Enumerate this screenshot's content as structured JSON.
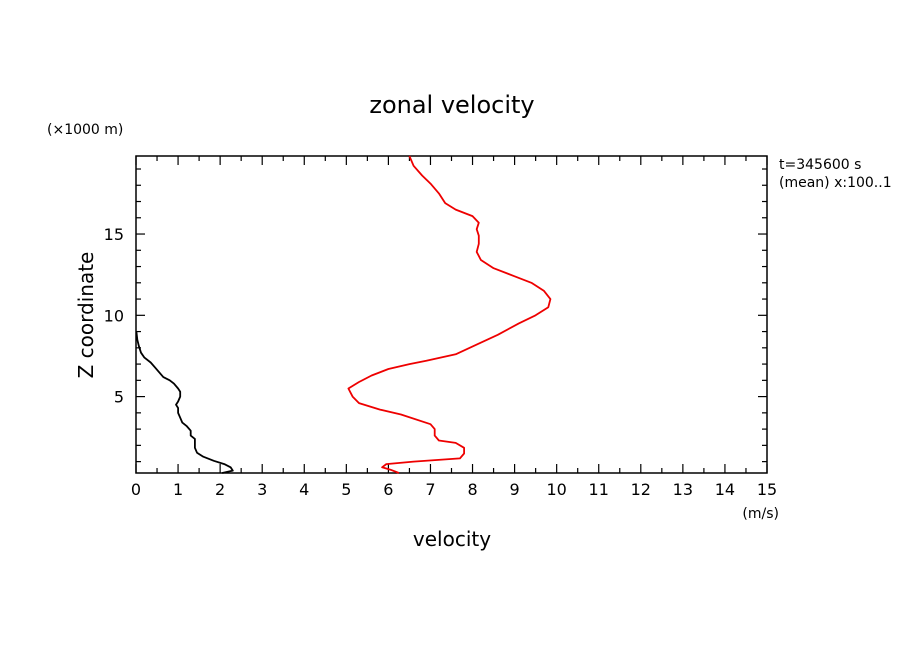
{
  "chart_data": {
    "type": "line",
    "title": "zonal velocity",
    "xlabel": "velocity",
    "ylabel": "Z coordinate",
    "x_unit": "(m/s)",
    "y_unit": "(×1000 m)",
    "annotations": [
      "t=345600 s",
      "(mean) x:100..1"
    ],
    "xlim": [
      0,
      15
    ],
    "ylim": [
      0.3,
      19.8
    ],
    "xticks": [
      0,
      1,
      2,
      3,
      4,
      5,
      6,
      7,
      8,
      9,
      10,
      11,
      12,
      13,
      14,
      15
    ],
    "yticks": [
      5,
      10,
      15
    ],
    "grid": false,
    "colors": {
      "series_black": "#000000",
      "series_red": "#ee0000"
    },
    "series": [
      {
        "color": "#000000",
        "points": [
          [
            2.05,
            0.3
          ],
          [
            2.3,
            0.45
          ],
          [
            2.25,
            0.65
          ],
          [
            2.1,
            0.85
          ],
          [
            1.85,
            1.05
          ],
          [
            1.6,
            1.3
          ],
          [
            1.45,
            1.55
          ],
          [
            1.4,
            1.85
          ],
          [
            1.4,
            2.1
          ],
          [
            1.4,
            2.4
          ],
          [
            1.3,
            2.6
          ],
          [
            1.3,
            2.9
          ],
          [
            1.2,
            3.2
          ],
          [
            1.1,
            3.4
          ],
          [
            1.05,
            3.7
          ],
          [
            1.0,
            4.0
          ],
          [
            1.0,
            4.3
          ],
          [
            0.95,
            4.5
          ],
          [
            1.0,
            4.7
          ],
          [
            1.05,
            5.0
          ],
          [
            1.05,
            5.3
          ],
          [
            1.0,
            5.5
          ],
          [
            0.9,
            5.8
          ],
          [
            0.8,
            6.0
          ],
          [
            0.65,
            6.2
          ],
          [
            0.55,
            6.5
          ],
          [
            0.45,
            6.8
          ],
          [
            0.35,
            7.1
          ],
          [
            0.2,
            7.4
          ],
          [
            0.12,
            7.7
          ],
          [
            0.07,
            8.1
          ],
          [
            0.03,
            8.5
          ],
          [
            0.01,
            9.0
          ]
        ]
      },
      {
        "color": "#ee0000",
        "points": [
          [
            6.25,
            0.3
          ],
          [
            6.05,
            0.5
          ],
          [
            5.85,
            0.65
          ],
          [
            5.95,
            0.85
          ],
          [
            6.6,
            1.0
          ],
          [
            7.7,
            1.2
          ],
          [
            7.8,
            1.5
          ],
          [
            7.8,
            1.85
          ],
          [
            7.6,
            2.15
          ],
          [
            7.2,
            2.3
          ],
          [
            7.1,
            2.6
          ],
          [
            7.1,
            3.0
          ],
          [
            7.0,
            3.3
          ],
          [
            6.3,
            3.9
          ],
          [
            5.8,
            4.2
          ],
          [
            5.3,
            4.6
          ],
          [
            5.15,
            5.0
          ],
          [
            5.05,
            5.5
          ],
          [
            5.3,
            5.9
          ],
          [
            5.6,
            6.3
          ],
          [
            6.0,
            6.7
          ],
          [
            6.5,
            7.0
          ],
          [
            6.9,
            7.2
          ],
          [
            7.6,
            7.6
          ],
          [
            8.1,
            8.2
          ],
          [
            8.6,
            8.8
          ],
          [
            9.1,
            9.5
          ],
          [
            9.5,
            10.0
          ],
          [
            9.8,
            10.5
          ],
          [
            9.85,
            11.0
          ],
          [
            9.7,
            11.5
          ],
          [
            9.4,
            12.0
          ],
          [
            9.0,
            12.4
          ],
          [
            8.5,
            12.9
          ],
          [
            8.2,
            13.4
          ],
          [
            8.1,
            13.9
          ],
          [
            8.15,
            14.4
          ],
          [
            8.15,
            14.9
          ],
          [
            8.1,
            15.3
          ],
          [
            8.15,
            15.7
          ],
          [
            8.0,
            16.1
          ],
          [
            7.6,
            16.5
          ],
          [
            7.35,
            16.9
          ],
          [
            7.2,
            17.5
          ],
          [
            7.0,
            18.1
          ],
          [
            6.8,
            18.6
          ],
          [
            6.6,
            19.2
          ],
          [
            6.5,
            19.8
          ]
        ]
      }
    ]
  }
}
